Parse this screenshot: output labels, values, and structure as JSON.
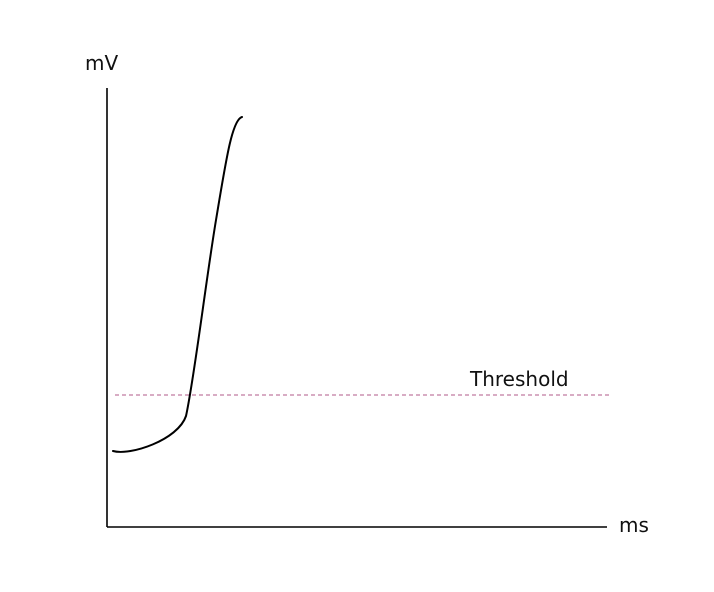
{
  "diagram": {
    "y_axis_label": "mV",
    "x_axis_label": "ms",
    "threshold_label": "Threshold",
    "colors": {
      "axis": "#000000",
      "curve": "#000000",
      "threshold": "#b05a8a",
      "text": "#111111"
    }
  }
}
